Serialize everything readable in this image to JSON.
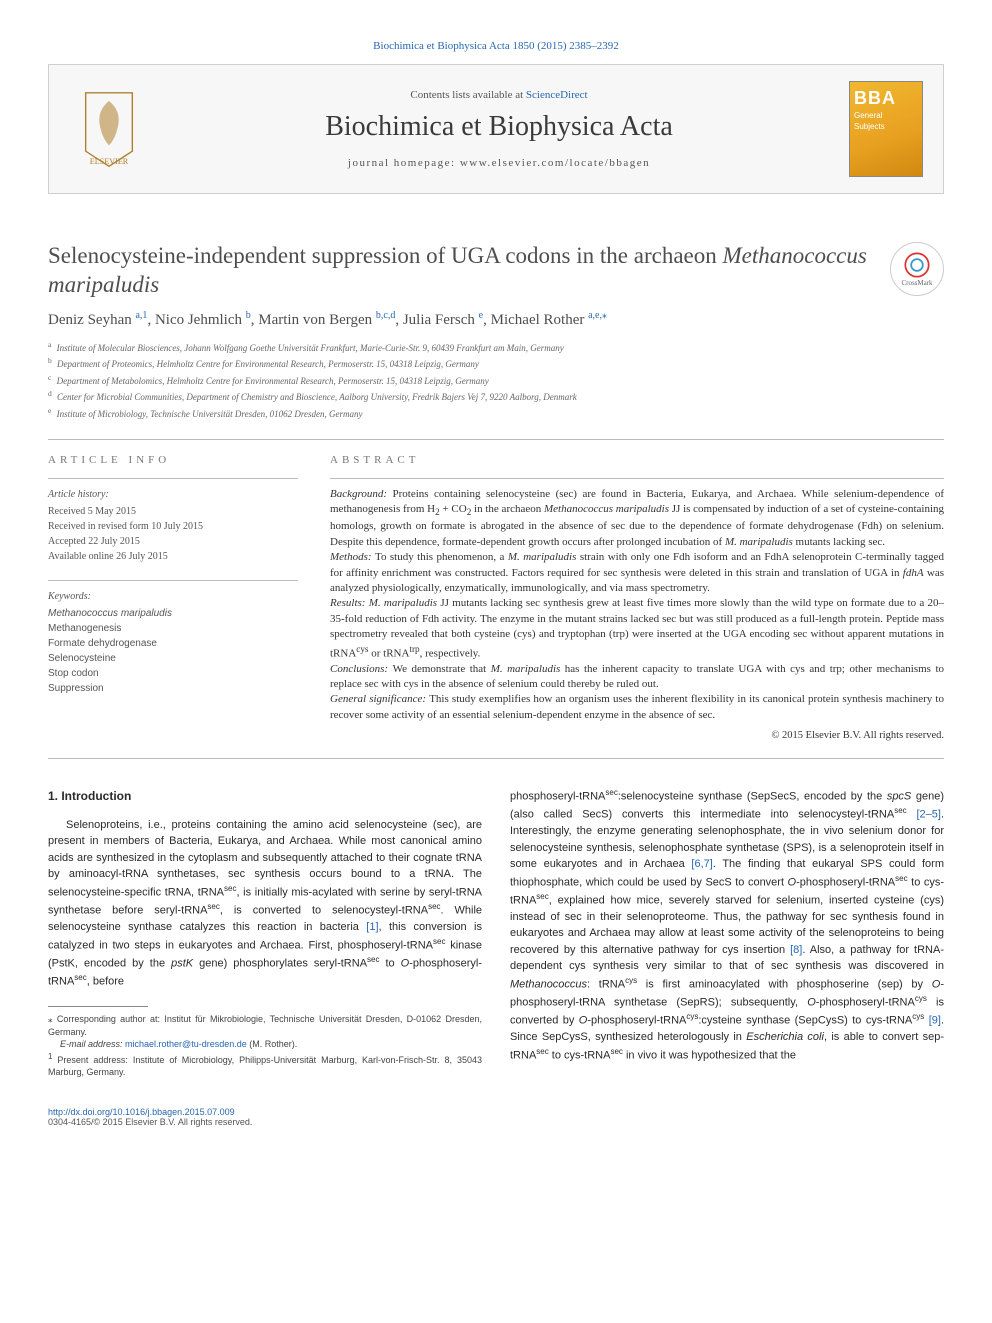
{
  "journal_ref": "Biochimica et Biophysica Acta 1850 (2015) 2385–2392",
  "header": {
    "contents_prefix": "Contents lists available at ",
    "contents_link": "ScienceDirect",
    "journal_name": "Biochimica et Biophysica Acta",
    "homepage_label": "journal homepage: ",
    "homepage_url": "www.elsevier.com/locate/bbagen",
    "cover_big": "BBA",
    "cover_sub1": "General",
    "cover_sub2": "Subjects"
  },
  "crossmark": "CrossMark",
  "title_plain": "Selenocysteine-independent suppression of UGA codons in the archaeon ",
  "title_species": "Methanococcus maripaludis",
  "authors": [
    {
      "name": "Deniz Seyhan ",
      "sup": "a,1"
    },
    {
      "name": ", Nico Jehmlich ",
      "sup": "b"
    },
    {
      "name": ", Martin von Bergen ",
      "sup": "b,c,d"
    },
    {
      "name": ", Julia Fersch ",
      "sup": "e"
    },
    {
      "name": ", Michael Rother ",
      "sup": "a,e,",
      "star": "⁎"
    }
  ],
  "affiliations": [
    {
      "sup": "a",
      "text": "Institute of Molecular Biosciences, Johann Wolfgang Goethe Universität Frankfurt, Marie-Curie-Str. 9, 60439 Frankfurt am Main, Germany"
    },
    {
      "sup": "b",
      "text": "Department of Proteomics, Helmholtz Centre for Environmental Research, Permoserstr. 15, 04318 Leipzig, Germany"
    },
    {
      "sup": "c",
      "text": "Department of Metabolomics, Helmholtz Centre for Environmental Research, Permoserstr. 15, 04318 Leipzig, Germany"
    },
    {
      "sup": "d",
      "text": "Center for Microbial Communities, Department of Chemistry and Bioscience, Aalborg University, Fredrik Bajers Vej 7, 9220 Aalborg, Denmark"
    },
    {
      "sup": "e",
      "text": "Institute of Microbiology, Technische Universität Dresden, 01062 Dresden, Germany"
    }
  ],
  "info_left": {
    "section": "article info",
    "history_head": "Article history:",
    "history": [
      "Received 5 May 2015",
      "Received in revised form 10 July 2015",
      "Accepted 22 July 2015",
      "Available online 26 July 2015"
    ],
    "keywords_head": "Keywords:",
    "keywords": [
      {
        "text": "Methanococcus maripaludis",
        "italic": true
      },
      {
        "text": "Methanogenesis",
        "italic": false
      },
      {
        "text": "Formate dehydrogenase",
        "italic": false
      },
      {
        "text": "Selenocysteine",
        "italic": false
      },
      {
        "text": "Stop codon",
        "italic": false
      },
      {
        "text": "Suppression",
        "italic": false
      }
    ]
  },
  "abstract": {
    "section": "abstract",
    "background_head": "Background: ",
    "background_1": "Proteins containing selenocysteine (sec) are found in Bacteria, Eukarya, and Archaea. While selenium-dependence of methanogenesis from H",
    "background_sub1": "2",
    "background_2": " + CO",
    "background_sub2": "2",
    "background_3": " in the archaeon ",
    "background_species": "Methanococcus maripaludis",
    "background_4": " JJ is compensated by induction of a set of cysteine-containing homologs, growth on formate is abrogated in the absence of sec due to the dependence of formate dehydrogenase (Fdh) on selenium. Despite this dependence, formate-dependent growth occurs after prolonged incubation of ",
    "background_species2": "M. maripaludis",
    "background_5": " mutants lacking sec.",
    "methods_head": "Methods: ",
    "methods_1": "To study this phenomenon, a ",
    "methods_species": "M. maripaludis",
    "methods_2": " strain with only one Fdh isoform and an FdhA selenoprotein C-terminally tagged for affinity enrichment was constructed. Factors required for sec synthesis were deleted in this strain and translation of UGA in ",
    "methods_gene": "fdhA",
    "methods_3": " was analyzed physiologically, enzymatically, immunologically, and via mass spectrometry.",
    "results_head": "Results: ",
    "results_species": "M. maripaludis",
    "results_1": " JJ mutants lacking sec synthesis grew at least five times more slowly than the wild type on formate due to a 20–35-fold reduction of Fdh activity. The enzyme in the mutant strains lacked sec but was still produced as a full-length protein. Peptide mass spectrometry revealed that both cysteine (cys) and tryptophan (trp) were inserted at the UGA encoding sec without apparent mutations in tRNA",
    "results_sup1": "cys",
    "results_2": " or tRNA",
    "results_sup2": "trp",
    "results_3": ", respectively.",
    "conclusions_head": "Conclusions: ",
    "conclusions_1": "We demonstrate that ",
    "conclusions_species": "M. maripaludis",
    "conclusions_2": " has the inherent capacity to translate UGA with cys and trp; other mechanisms to replace sec with cys in the absence of selenium could thereby be ruled out.",
    "significance_head": "General significance: ",
    "significance": "This study exemplifies how an organism uses the inherent flexibility in its canonical protein synthesis machinery to recover some activity of an essential selenium-dependent enzyme in the absence of sec.",
    "copyright": "© 2015 Elsevier B.V. All rights reserved."
  },
  "intro": {
    "heading": "1. Introduction",
    "col1_1": "Selenoproteins, i.e., proteins containing the amino acid selenocysteine (sec), are present in members of Bacteria, Eukarya, and Archaea. While most canonical amino acids are synthesized in the cytoplasm and subsequently attached to their cognate tRNA by aminoacyl-tRNA synthetases, sec synthesis occurs bound to a tRNA. The selenocysteine-specific tRNA, tRNA",
    "col1_sup1": "sec",
    "col1_2": ", is initially mis-acylated with serine by seryl-tRNA synthetase before seryl-tRNA",
    "col1_sup2": "sec",
    "col1_3": ", is converted to selenocysteyl-tRNA",
    "col1_sup3": "sec",
    "col1_4": ". While selenocysteine synthase catalyzes this reaction in bacteria ",
    "col1_ref1": "[1]",
    "col1_5": ", this conversion is catalyzed in two steps in eukaryotes and Archaea. First, phosphoseryl-tRNA",
    "col1_sup4": "sec",
    "col1_6": " kinase (PstK, encoded by the ",
    "col1_gene": "pstK",
    "col1_7": " gene) phosphorylates seryl-tRNA",
    "col1_sup5": "sec",
    "col1_8": " to ",
    "col1_ital": "O",
    "col1_9": "-phosphoseryl-tRNA",
    "col1_sup6": "sec",
    "col1_10": ", before",
    "col2_1": "phosphoseryl-tRNA",
    "col2_sup1": "sec",
    "col2_2": ":selenocysteine synthase (SepSecS, encoded by the ",
    "col2_gene1": "spcS",
    "col2_3": " gene) (also called SecS) converts this intermediate into selenocysteyl-tRNA",
    "col2_sup2": "sec",
    "col2_4": " ",
    "col2_ref1": "[2–5]",
    "col2_5": ". Interestingly, the enzyme generating selenophosphate, the in vivo selenium donor for selenocysteine synthesis, selenophosphate synthetase (SPS), is a selenoprotein itself in some eukaryotes and in Archaea ",
    "col2_ref2": "[6,7]",
    "col2_6": ". The finding that eukaryal SPS could form thiophosphate, which could be used by SecS to convert ",
    "col2_ital1": "O",
    "col2_7": "-phosphoseryl-tRNA",
    "col2_sup3": "sec",
    "col2_8": " to cys-tRNA",
    "col2_sup4": "sec",
    "col2_9": ", explained how mice, severely starved for selenium, inserted cysteine (cys) instead of sec in their selenoproteome. Thus, the pathway for sec synthesis found in eukaryotes and Archaea may allow at least some activity of the selenoproteins to being recovered by this alternative pathway for cys insertion ",
    "col2_ref3": "[8]",
    "col2_10": ". Also, a pathway for tRNA-dependent cys synthesis very similar to that of sec synthesis was discovered in ",
    "col2_species": "Methanococcus",
    "col2_11": ": tRNA",
    "col2_sup5": "cys",
    "col2_12": " is first aminoacylated with phosphoserine (sep) by ",
    "col2_ital2": "O",
    "col2_13": "-phosphoseryl-tRNA synthetase (SepRS); subsequently, ",
    "col2_ital3": "O",
    "col2_14": "-phosphoseryl-tRNA",
    "col2_sup6": "cys",
    "col2_15": " is converted by ",
    "col2_ital4": "O",
    "col2_16": "-phosphoseryl-tRNA",
    "col2_sup7": "cys",
    "col2_17": ":cysteine synthase (SepCysS) to cys-tRNA",
    "col2_sup8": "cys",
    "col2_18": " ",
    "col2_ref4": "[9]",
    "col2_19": ". Since SepCysS, synthesized heterologously in ",
    "col2_species2": "Escherichia coli",
    "col2_20": ", is able to convert sep-tRNA",
    "col2_sup9": "sec",
    "col2_21": " to cys-tRNA",
    "col2_sup10": "sec",
    "col2_22": " in vivo it was hypothesized that the"
  },
  "footnotes": {
    "corr_mark": "⁎",
    "corr_text": " Corresponding author at: Institut für Mikrobiologie, Technische Universität Dresden, D-01062 Dresden, Germany.",
    "email_label": "E-mail address: ",
    "email": "michael.rother@tu-dresden.de",
    "email_who": " (M. Rother).",
    "note1_mark": "1",
    "note1_text": " Present address: Institute of Microbiology, Philipps-Universität Marburg, Karl-von-Frisch-Str. 8, 35043 Marburg, Germany."
  },
  "footer": {
    "doi": "http://dx.doi.org/10.1016/j.bbagen.2015.07.009",
    "issn_line": "0304-4165/© 2015 Elsevier B.V. All rights reserved."
  },
  "colors": {
    "link": "#2767b0",
    "text": "#333333",
    "border": "#bbbbbb",
    "header_bg": "#f7f7f7"
  }
}
